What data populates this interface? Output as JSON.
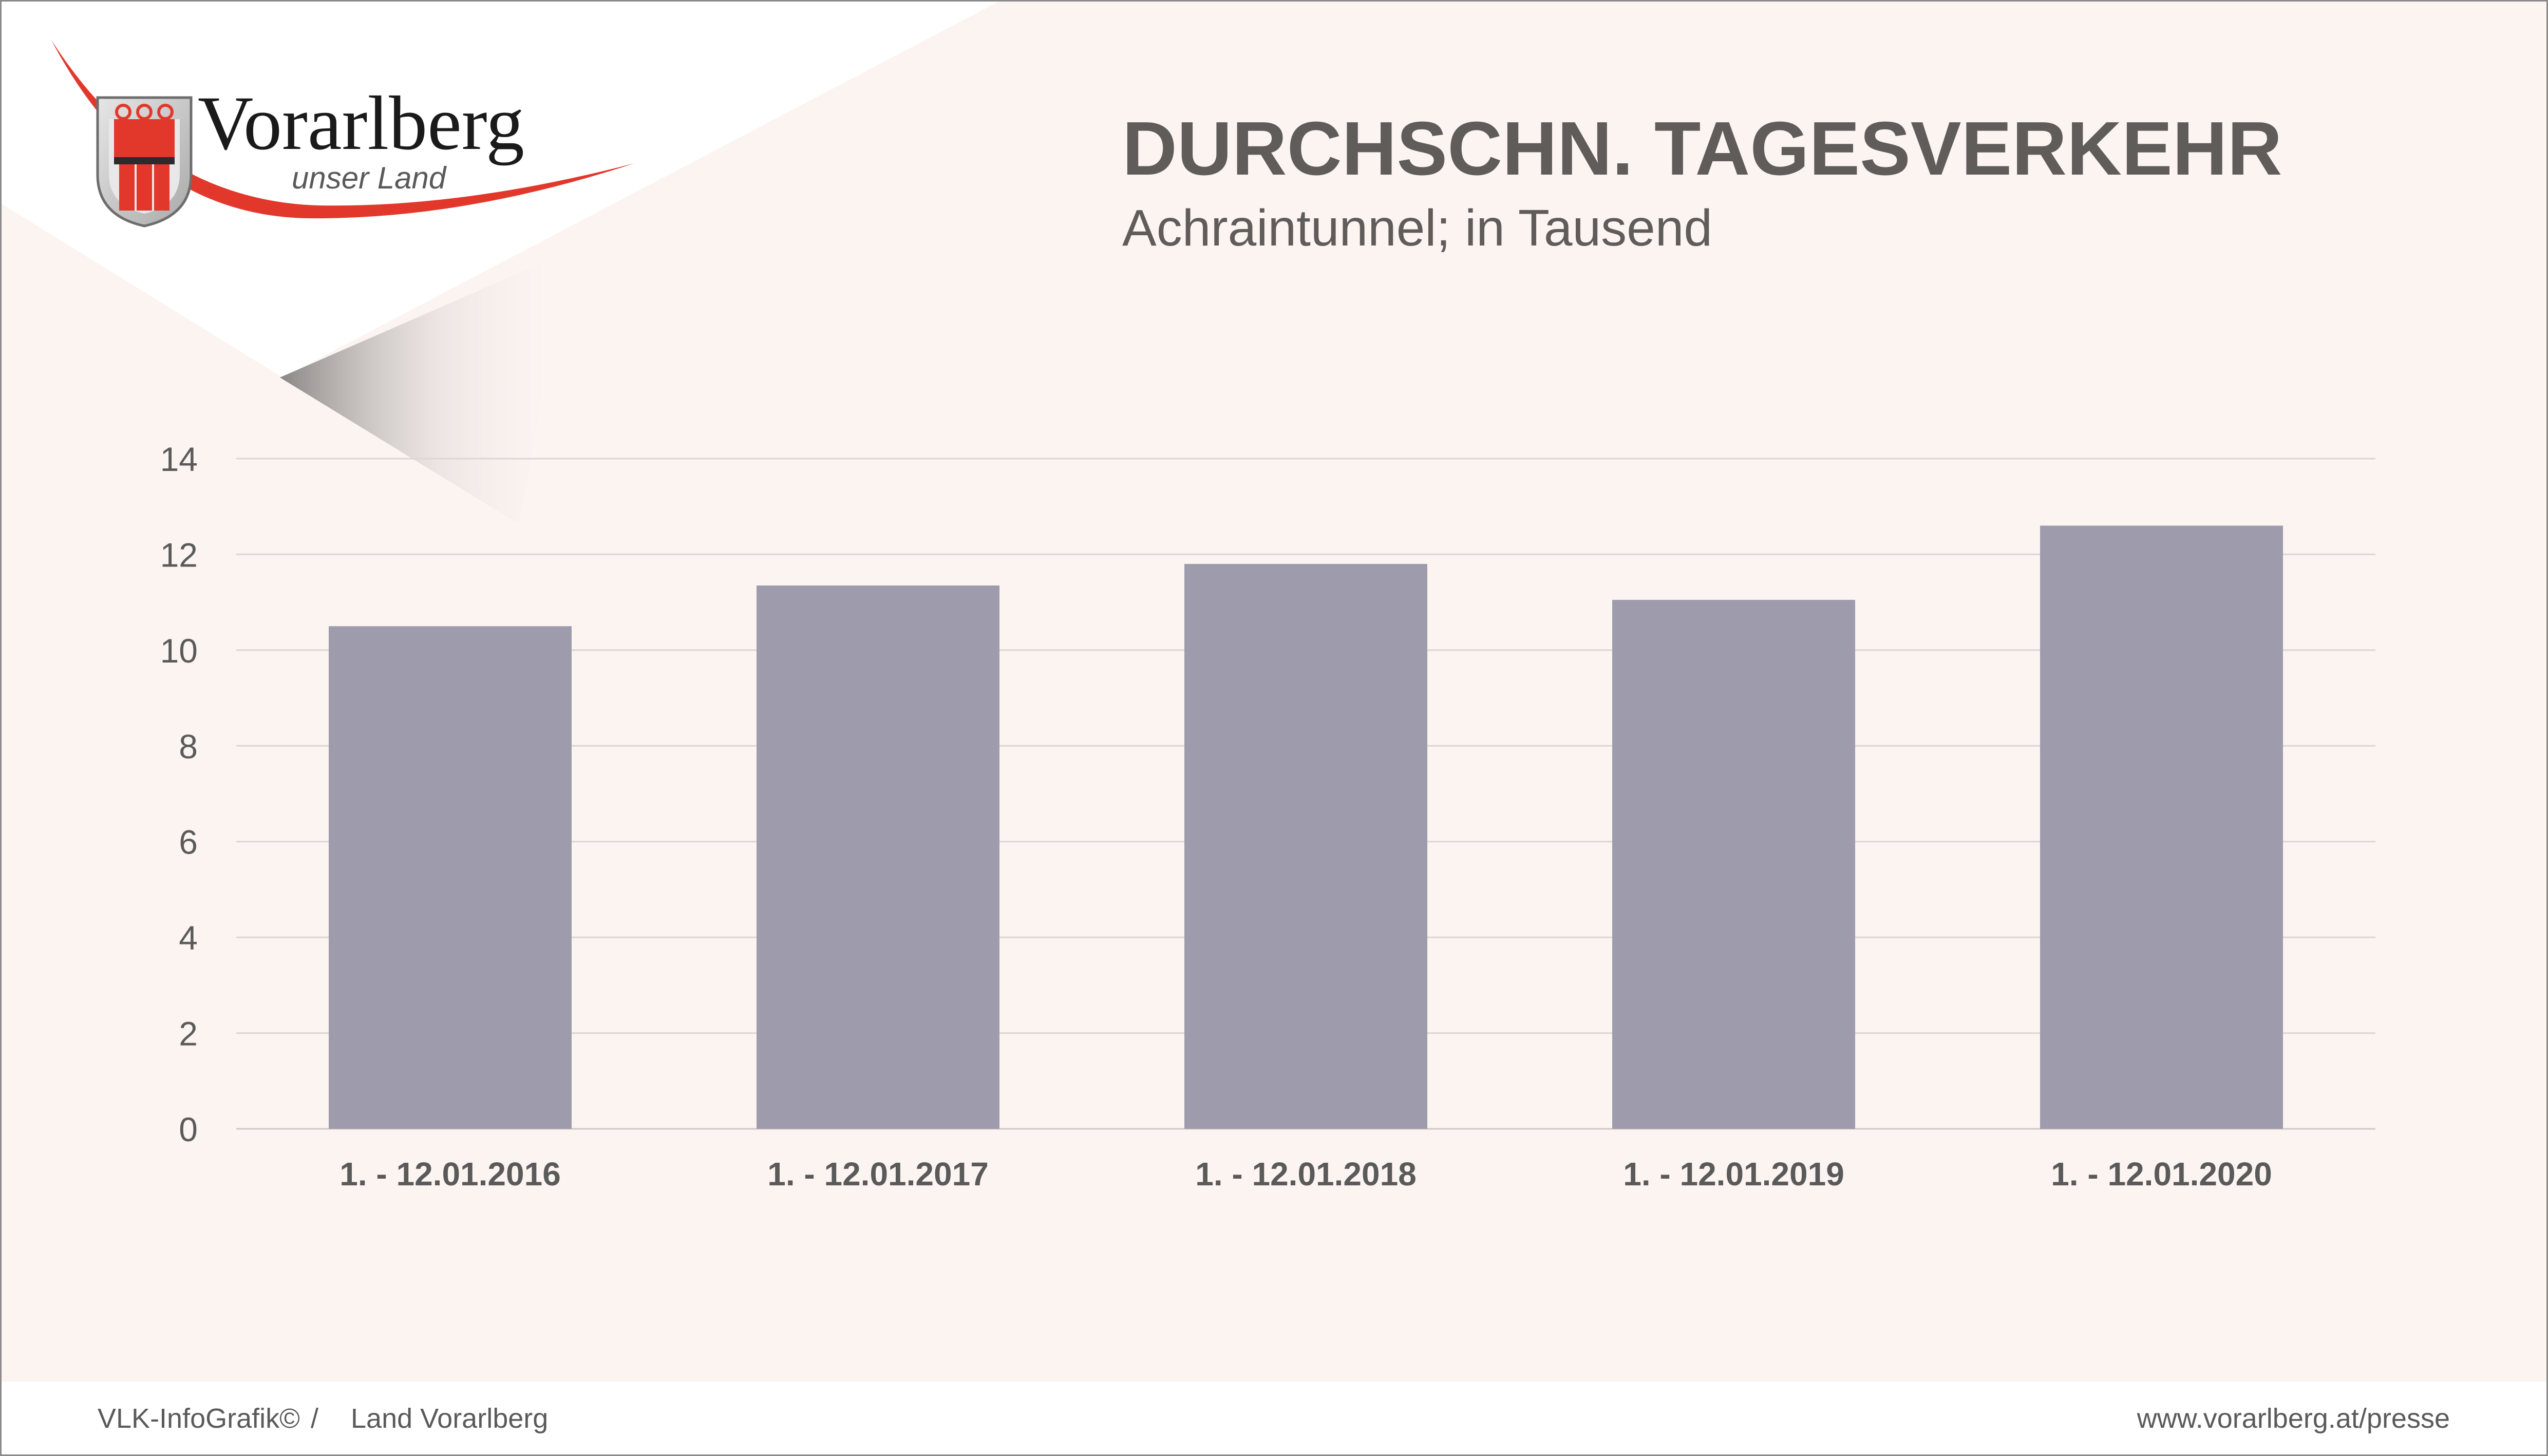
{
  "brand": {
    "name": "Vorarlberg",
    "tagline": "unser Land"
  },
  "colors": {
    "background": "#fcf4f1",
    "bar": "#9e9cac",
    "title": "#5f5c5a",
    "accent_red": "#e2382c",
    "grid": "#dcd6d4",
    "footer_bg": "#ffffff"
  },
  "chart_data": {
    "type": "bar",
    "title": "DURCHSCHN. TAGESVERKEHR",
    "subtitle": "Achraintunnel; in Tausend",
    "categories": [
      "1. - 12.01.2016",
      "1. - 12.01.2017",
      "1. - 12.01.2018",
      "1. - 12.01.2019",
      "1. - 12.01.2020"
    ],
    "values": [
      10.5,
      11.35,
      11.8,
      11.05,
      12.6
    ],
    "xlabel": "",
    "ylabel": "",
    "ylim": [
      0,
      14
    ],
    "yticks": [
      "0",
      "2",
      "4",
      "6",
      "8",
      "10",
      "12",
      "14"
    ],
    "grid": true,
    "legend": "none"
  },
  "footer": {
    "source": "VLK-InfoGrafik©",
    "separator": "/",
    "publisher": "Land Vorarlberg",
    "url": "www.vorarlberg.at/presse"
  }
}
